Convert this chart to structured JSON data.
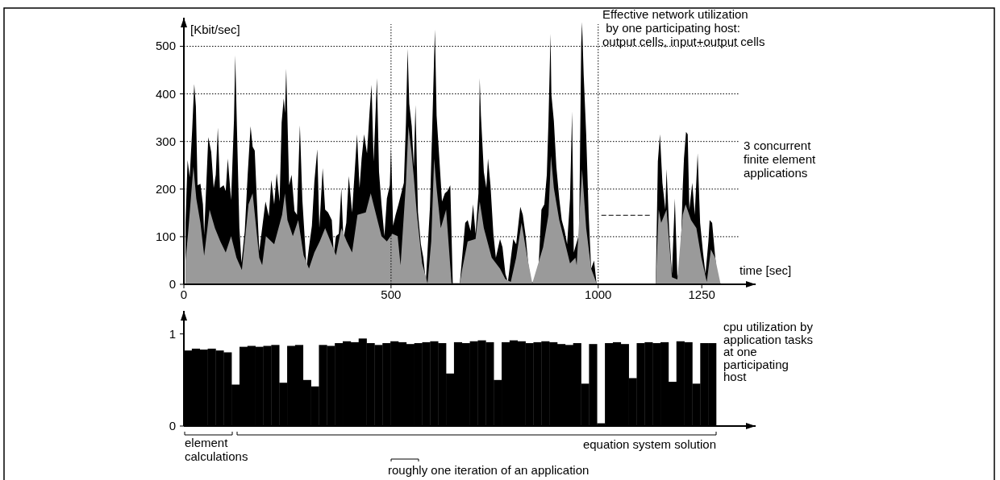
{
  "chart_data": [
    {
      "type": "area",
      "ylabel": "[Kbit/sec]",
      "xlabel": "time [sec]",
      "annotations": [
        "Effective network utilization\n by one participating host:\noutput cells, input+output cells",
        "3 concurrent\nfinite element\napplications"
      ],
      "xlim": [
        0,
        1380
      ],
      "xticks": [
        0,
        500,
        1000,
        1250
      ],
      "ylim": [
        0,
        560
      ],
      "yticks": [
        0,
        100,
        200,
        300,
        400,
        500
      ],
      "grid": "y",
      "ref_lines": [
        {
          "axis": "x",
          "value": 500,
          "line_style": "dotted"
        },
        {
          "axis": "x",
          "value": 1000,
          "line_style": "dotted"
        },
        {
          "axis": "y",
          "value": 145,
          "line_style": "dashed"
        }
      ],
      "series": [
        {
          "color": "#000000",
          "x": [
            4,
            9,
            14,
            20,
            25,
            29,
            33,
            40,
            46,
            49,
            59,
            66,
            72,
            77,
            82,
            87,
            96,
            101,
            106,
            114,
            121,
            124,
            128,
            134,
            139,
            147,
            154,
            161,
            166,
            171,
            176,
            182,
            197,
            205,
            211,
            218,
            224,
            231,
            236,
            241,
            244,
            247,
            254,
            260,
            267,
            273,
            280,
            286,
            296,
            302,
            309,
            315,
            322,
            327,
            335,
            341,
            348,
            357,
            362,
            367,
            374,
            380,
            385,
            392,
            398,
            406,
            418,
            424,
            429,
            435,
            442,
            448,
            453,
            458,
            466,
            471,
            477,
            484,
            490,
            497,
            500,
            505,
            511,
            518,
            531,
            536,
            540,
            544,
            550,
            555,
            559,
            565,
            572,
            578,
            584,
            594,
            601,
            604,
            606,
            610,
            617,
            623,
            630,
            636,
            643,
            649,
            666,
            679,
            685,
            692,
            698,
            704,
            711,
            714,
            717,
            724,
            730,
            734,
            740,
            747,
            753,
            763,
            769,
            776,
            782,
            795,
            802,
            812,
            818,
            825,
            831,
            838,
            854,
            863,
            870,
            876,
            880,
            885,
            887,
            893,
            899,
            906,
            912,
            919,
            925,
            932,
            937,
            941,
            954,
            959,
            961,
            965,
            971,
            977,
            983,
            990,
            996,
            1050,
            1139,
            1144,
            1149,
            1155,
            1162,
            1165,
            1172,
            1178,
            1185,
            1191,
            1198,
            1204,
            1207,
            1212,
            1216,
            1220,
            1227,
            1233,
            1240,
            1246,
            1253,
            1259,
            1266,
            1269,
            1275,
            1282,
            1288,
            1295
          ],
          "values": [
            129,
            261,
            225,
            323,
            421,
            374,
            208,
            211,
            168,
            105,
            309,
            278,
            202,
            230,
            329,
            202,
            208,
            196,
            264,
            177,
            346,
            481,
            332,
            118,
            45,
            112,
            230,
            332,
            289,
            281,
            180,
            70,
            174,
            143,
            219,
            168,
            233,
            174,
            340,
            391,
            360,
            453,
            208,
            230,
            154,
            146,
            334,
            177,
            36,
            78,
            123,
            216,
            284,
            118,
            244,
            157,
            151,
            135,
            64,
            101,
            106,
            202,
            95,
            129,
            227,
            151,
            315,
            202,
            264,
            315,
            275,
            360,
            419,
            258,
            433,
            236,
            168,
            101,
            180,
            208,
            287,
            123,
            146,
            168,
            213,
            340,
            495,
            379,
            332,
            247,
            377,
            151,
            84,
            56,
            5,
            163,
            379,
            478,
            535,
            354,
            258,
            174,
            191,
            196,
            208,
            2,
            2,
            129,
            135,
            112,
            168,
            106,
            191,
            433,
            354,
            236,
            202,
            264,
            208,
            106,
            56,
            95,
            78,
            22,
            5,
            95,
            84,
            163,
            146,
            101,
            44,
            5,
            2,
            157,
            168,
            230,
            343,
            526,
            399,
            343,
            247,
            180,
            135,
            112,
            84,
            180,
            363,
            67,
            106,
            506,
            551,
            439,
            315,
            146,
            33,
            50,
            2,
            null,
            2,
            258,
            315,
            213,
            157,
            242,
            101,
            22,
            180,
            16,
            33,
            202,
            264,
            320,
            315,
            157,
            213,
            146,
            275,
            129,
            67,
            22,
            90,
            135,
            129,
            61,
            11,
            2
          ]
        },
        {
          "color": "#9a9a9a",
          "x": [
            4,
            10,
            23,
            30,
            40,
            49,
            62,
            75,
            88,
            101,
            114,
            127,
            140,
            156,
            166,
            182,
            189,
            198,
            218,
            237,
            244,
            250,
            263,
            276,
            289,
            302,
            315,
            328,
            341,
            354,
            367,
            380,
            393,
            406,
            419,
            439,
            451,
            464,
            477,
            490,
            503,
            516,
            523,
            536,
            542,
            549,
            555,
            562,
            575,
            588,
            597,
            604,
            610,
            620,
            633,
            646,
            666,
            672,
            685,
            704,
            714,
            724,
            743,
            763,
            776,
            789,
            802,
            815,
            828,
            841,
            867,
            880,
            886,
            893,
            906,
            919,
            932,
            945,
            948,
            961,
            971,
            983,
            996,
            1050,
            1139,
            1146,
            1152,
            1165,
            1178,
            1191,
            1204,
            1211,
            1224,
            1237,
            1249,
            1262,
            1272,
            1282,
            1295
          ],
          "values": [
            50,
            106,
            247,
            180,
            129,
            60,
            157,
            118,
            90,
            67,
            101,
            56,
            30,
            168,
            191,
            56,
            40,
            101,
            84,
            146,
            191,
            135,
            101,
            135,
            61,
            33,
            67,
            90,
            118,
            90,
            61,
            118,
            90,
            67,
            146,
            151,
            191,
            146,
            101,
            90,
            106,
            101,
            40,
            213,
            332,
            281,
            225,
            151,
            44,
            2,
            90,
            264,
            202,
            118,
            157,
            2,
            2,
            33,
            90,
            95,
            174,
            118,
            56,
            33,
            11,
            5,
            56,
            129,
            61,
            2,
            78,
            146,
            270,
            202,
            135,
            90,
            44,
            56,
            40,
            242,
            118,
            33,
            2,
            null,
            2,
            157,
            129,
            157,
            15,
            10,
            146,
            168,
            135,
            118,
            56,
            5,
            73,
            56,
            2
          ]
        }
      ]
    },
    {
      "type": "bar",
      "tick_labels": "y",
      "annotations": [
        "cpu utilization by\napplication tasks\nat one\nparticipating\nhost",
        "element\ncalculations",
        "equation system solution",
        "roughly one iteration of an application"
      ],
      "categories": [
        null,
        null,
        null,
        null,
        null,
        null,
        null,
        null,
        null,
        null,
        null,
        null,
        null,
        null,
        null,
        null,
        null,
        null,
        null,
        null,
        null,
        null,
        null,
        null,
        null,
        null,
        null,
        null,
        null,
        null,
        null,
        null,
        null,
        null,
        null,
        null,
        null,
        null,
        null,
        null,
        null,
        null,
        null,
        null,
        null,
        null,
        null,
        null,
        null,
        null,
        null,
        null,
        null,
        null,
        null,
        null,
        null,
        null,
        null,
        null,
        null,
        null,
        null,
        null,
        null,
        null,
        null
      ],
      "ylim": [
        0,
        1.25
      ],
      "yticks": [
        0,
        1
      ],
      "series": [
        {
          "color": "#000000",
          "values": [
            0.82,
            0.84,
            0.83,
            0.84,
            0.82,
            0.8,
            0.45,
            0.86,
            0.87,
            0.86,
            0.87,
            0.88,
            0.47,
            0.87,
            0.88,
            0.5,
            0.43,
            0.88,
            0.87,
            0.9,
            0.92,
            0.91,
            0.95,
            0.9,
            0.88,
            0.9,
            0.92,
            0.91,
            0.89,
            0.9,
            0.91,
            0.92,
            0.9,
            0.57,
            0.91,
            0.9,
            0.92,
            0.93,
            0.91,
            0.5,
            0.91,
            0.93,
            0.92,
            0.9,
            0.91,
            0.92,
            0.91,
            0.89,
            0.88,
            0.9,
            0.46,
            0.89,
            0.03,
            0.9,
            0.91,
            0.89,
            0.52,
            0.9,
            0.91,
            0.9,
            0.91,
            0.48,
            0.92,
            0.91,
            0.46,
            0.9,
            0.9
          ]
        }
      ]
    }
  ]
}
